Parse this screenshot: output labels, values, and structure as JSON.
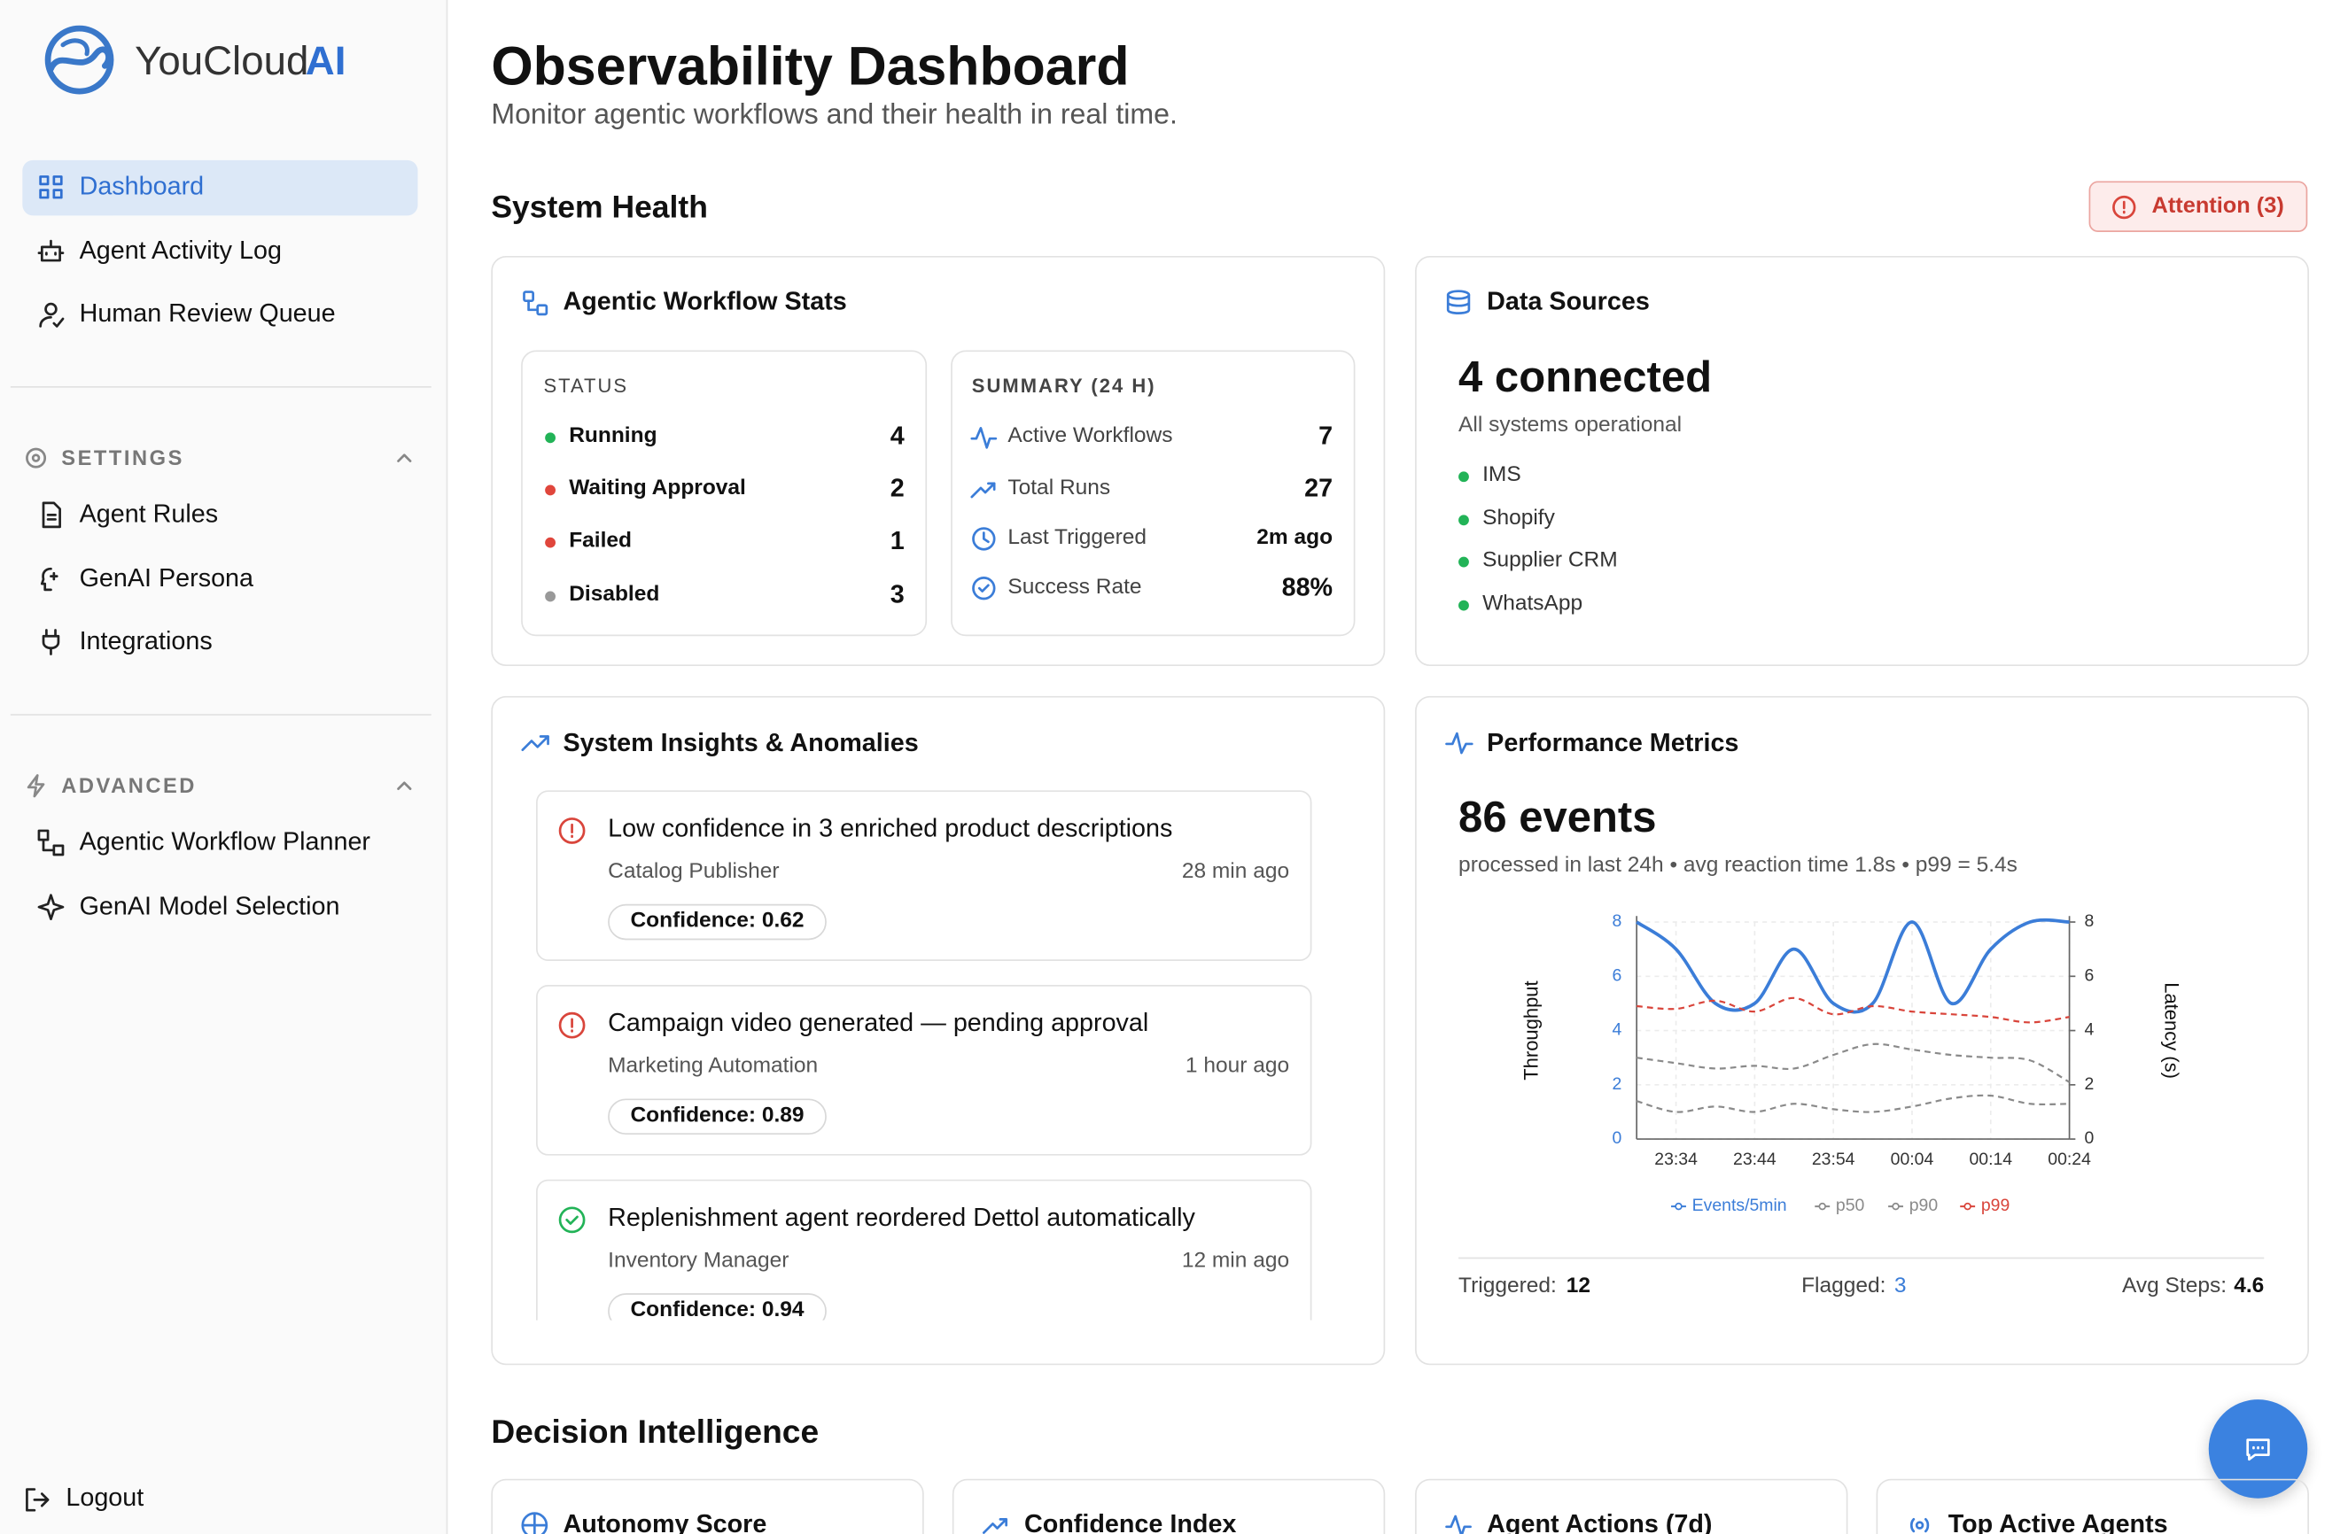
{
  "brand": {
    "name": "YouCloud",
    "accent": "AI"
  },
  "nav": {
    "main": [
      "Dashboard",
      "Agent Activity Log",
      "Human Review Queue"
    ],
    "settings": {
      "title": "SETTINGS",
      "items": [
        "Agent Rules",
        "GenAI Persona",
        "Integrations"
      ]
    },
    "advanced": {
      "title": "ADVANCED",
      "items": [
        "Agentic Workflow Planner",
        "GenAI Model Selection"
      ]
    },
    "logout": "Logout"
  },
  "header": {
    "title": "Observability Dashboard",
    "subtitle": "Monitor agentic workflows and their health in real time."
  },
  "system_health": {
    "title": "System Health",
    "attention": "Attention (3)",
    "workflow_stats": {
      "title": "Agentic Workflow Stats",
      "status": {
        "title": "STATUS",
        "rows": [
          {
            "label": "Running",
            "value": 4,
            "color": "#22b357"
          },
          {
            "label": "Waiting Approval",
            "value": 2,
            "color": "#e0463c"
          },
          {
            "label": "Failed",
            "value": 1,
            "color": "#e0463c"
          },
          {
            "label": "Disabled",
            "value": 3,
            "color": "#999999"
          }
        ]
      },
      "summary": {
        "title": "SUMMARY (24 H)",
        "rows": [
          {
            "label": "Active Workflows",
            "value": "7"
          },
          {
            "label": "Total Runs",
            "value": "27"
          },
          {
            "label": "Last Triggered",
            "value": "2m ago"
          },
          {
            "label": "Success Rate",
            "value": "88%"
          }
        ]
      }
    },
    "data_sources": {
      "title": "Data Sources",
      "headline": "4 connected",
      "note": "All systems operational",
      "items": [
        "IMS",
        "Shopify",
        "Supplier CRM",
        "WhatsApp"
      ]
    },
    "insights": {
      "title": "System Insights & Anomalies",
      "items": [
        {
          "title": "Low confidence in 3 enriched product descriptions",
          "source": "Catalog Publisher",
          "time": "28 min ago",
          "confidence": "Confidence: 0.62",
          "color": "#d9453b"
        },
        {
          "title": "Campaign video generated — pending approval",
          "source": "Marketing Automation",
          "time": "1 hour ago",
          "confidence": "Confidence: 0.89",
          "color": "#d9453b"
        },
        {
          "title": "Replenishment agent reordered Dettol automatically",
          "source": "Inventory Manager",
          "time": "12 min ago",
          "confidence": "Confidence: 0.94",
          "color": "#22b357"
        }
      ]
    },
    "performance": {
      "title": "Performance Metrics",
      "headline": "86 events",
      "note": "processed in last 24h • avg reaction time 1.8s • p99 = 5.4s",
      "stats": [
        {
          "label": "Triggered:",
          "value": 12
        },
        {
          "label": "Flagged:",
          "value": 3
        },
        {
          "label": "Avg Steps:",
          "value": 4.6
        }
      ]
    }
  },
  "decision_intelligence": {
    "title": "Decision Intelligence",
    "cards": [
      "Autonomy Score",
      "Confidence Index",
      "Agent Actions (7d)",
      "Top Active Agents"
    ]
  },
  "chart_data": {
    "type": "line",
    "categories": [
      null,
      "23:34",
      null,
      "23:44",
      null,
      "23:54",
      null,
      "00:04",
      null,
      "00:14",
      null,
      "00:24"
    ],
    "ylabel": "Throughput",
    "y2label": "Latency (s)",
    "ylim": [
      0,
      8
    ],
    "yticks": [
      0,
      2,
      4,
      6,
      8
    ],
    "y2lim": [
      0,
      8
    ],
    "y2ticks": [
      0,
      2,
      4,
      6,
      8
    ],
    "grid": true,
    "series": [
      {
        "name": "Events/5min",
        "color": "#3b7dd8",
        "values": [
          8,
          7,
          5,
          5,
          7,
          5,
          5,
          8,
          5,
          7,
          8,
          8
        ]
      },
      {
        "name": "p50",
        "color": "#8a8a8a",
        "axis": "y2",
        "dashed": true,
        "values": [
          1.4,
          1.0,
          1.2,
          1.0,
          1.3,
          1.1,
          1.0,
          1.2,
          1.5,
          1.6,
          1.3,
          1.3
        ]
      },
      {
        "name": "p90",
        "color": "#8a8a8a",
        "axis": "y2",
        "dashed": true,
        "values": [
          3.0,
          2.8,
          2.6,
          2.7,
          2.6,
          3.1,
          3.5,
          3.3,
          3.1,
          3.0,
          2.9,
          2.1
        ]
      },
      {
        "name": "p99",
        "color": "#d9453b",
        "axis": "y2",
        "dashed": true,
        "values": [
          4.9,
          4.8,
          5.1,
          4.7,
          5.2,
          4.6,
          4.9,
          4.7,
          4.6,
          4.5,
          4.3,
          4.5
        ]
      }
    ]
  }
}
